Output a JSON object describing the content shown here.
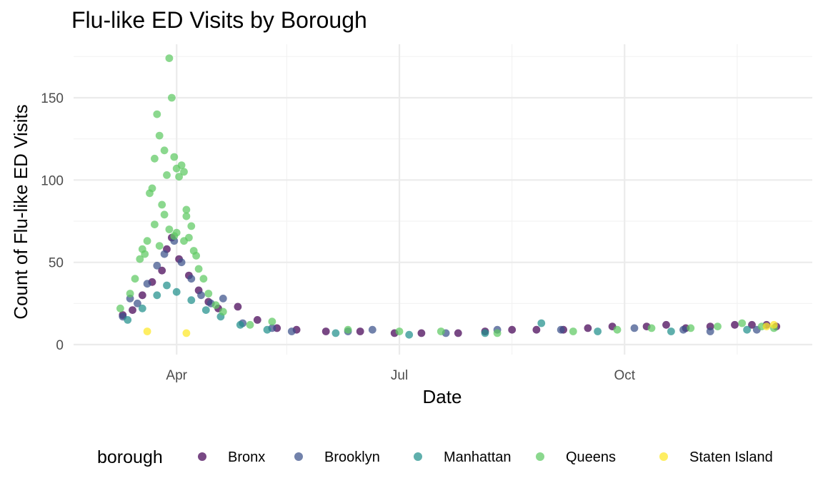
{
  "chart_data": {
    "type": "scatter",
    "title": "Flu-like ED Visits by Borough",
    "xlabel": "Date",
    "ylabel": "Count of Flu-like ED Visits",
    "x_domain": [
      "2020-03-01",
      "2020-12-05"
    ],
    "x_ticks": [
      {
        "date": "2020-04-01",
        "label": "Apr"
      },
      {
        "date": "2020-07-01",
        "label": "Jul"
      },
      {
        "date": "2020-10-01",
        "label": "Oct"
      }
    ],
    "x_minor_ticks": [
      "2020-02-15",
      "2020-05-16",
      "2020-08-16",
      "2020-11-16"
    ],
    "ylim": [
      -8,
      180
    ],
    "y_ticks": [
      0,
      50,
      100,
      150
    ],
    "y_minor_ticks": [
      25,
      75,
      125,
      175
    ],
    "grid": true,
    "legend": {
      "title": "borough",
      "position": "bottom"
    },
    "series": [
      {
        "name": "Bronx",
        "color": "#440154",
        "points": [
          [
            "2020-03-10",
            18
          ],
          [
            "2020-03-14",
            21
          ],
          [
            "2020-03-18",
            30
          ],
          [
            "2020-03-22",
            38
          ],
          [
            "2020-03-26",
            45
          ],
          [
            "2020-03-28",
            58
          ],
          [
            "2020-03-30",
            65
          ],
          [
            "2020-04-02",
            52
          ],
          [
            "2020-04-06",
            42
          ],
          [
            "2020-04-10",
            33
          ],
          [
            "2020-04-14",
            26
          ],
          [
            "2020-04-18",
            22
          ],
          [
            "2020-04-26",
            23
          ],
          [
            "2020-05-04",
            15
          ],
          [
            "2020-05-12",
            10
          ],
          [
            "2020-05-20",
            9
          ],
          [
            "2020-06-01",
            8
          ],
          [
            "2020-06-15",
            8
          ],
          [
            "2020-06-29",
            7
          ],
          [
            "2020-07-10",
            7
          ],
          [
            "2020-07-25",
            7
          ],
          [
            "2020-08-05",
            8
          ],
          [
            "2020-08-16",
            9
          ],
          [
            "2020-08-26",
            9
          ],
          [
            "2020-09-06",
            9
          ],
          [
            "2020-09-16",
            10
          ],
          [
            "2020-09-26",
            11
          ],
          [
            "2020-10-10",
            11
          ],
          [
            "2020-10-18",
            12
          ],
          [
            "2020-10-26",
            10
          ],
          [
            "2020-11-05",
            11
          ],
          [
            "2020-11-15",
            12
          ],
          [
            "2020-11-22",
            12
          ],
          [
            "2020-11-28",
            12
          ],
          [
            "2020-12-02",
            11
          ]
        ]
      },
      {
        "name": "Brooklyn",
        "color": "#3b528b",
        "points": [
          [
            "2020-03-10",
            17
          ],
          [
            "2020-03-13",
            28
          ],
          [
            "2020-03-16",
            25
          ],
          [
            "2020-03-20",
            37
          ],
          [
            "2020-03-24",
            48
          ],
          [
            "2020-03-27",
            55
          ],
          [
            "2020-03-31",
            63
          ],
          [
            "2020-04-03",
            50
          ],
          [
            "2020-04-07",
            40
          ],
          [
            "2020-04-11",
            30
          ],
          [
            "2020-04-15",
            25
          ],
          [
            "2020-04-20",
            28
          ],
          [
            "2020-04-28",
            13
          ],
          [
            "2020-05-10",
            10
          ],
          [
            "2020-05-18",
            8
          ],
          [
            "2020-06-10",
            8
          ],
          [
            "2020-06-20",
            9
          ],
          [
            "2020-07-20",
            7
          ],
          [
            "2020-08-10",
            9
          ],
          [
            "2020-09-05",
            9
          ],
          [
            "2020-10-05",
            10
          ],
          [
            "2020-10-25",
            9
          ],
          [
            "2020-11-05",
            8
          ],
          [
            "2020-11-24",
            9
          ]
        ]
      },
      {
        "name": "Manhattan",
        "color": "#21908c",
        "points": [
          [
            "2020-03-12",
            15
          ],
          [
            "2020-03-18",
            22
          ],
          [
            "2020-03-24",
            30
          ],
          [
            "2020-03-28",
            36
          ],
          [
            "2020-04-01",
            32
          ],
          [
            "2020-04-07",
            27
          ],
          [
            "2020-04-13",
            21
          ],
          [
            "2020-04-19",
            17
          ],
          [
            "2020-04-27",
            12
          ],
          [
            "2020-05-08",
            9
          ],
          [
            "2020-06-05",
            7
          ],
          [
            "2020-07-05",
            6
          ],
          [
            "2020-08-05",
            7
          ],
          [
            "2020-08-28",
            13
          ],
          [
            "2020-09-20",
            8
          ],
          [
            "2020-10-20",
            8
          ],
          [
            "2020-11-20",
            9
          ]
        ]
      },
      {
        "name": "Queens",
        "color": "#5ec962",
        "points": [
          [
            "2020-03-09",
            22
          ],
          [
            "2020-03-13",
            31
          ],
          [
            "2020-03-15",
            40
          ],
          [
            "2020-03-17",
            52
          ],
          [
            "2020-03-18",
            58
          ],
          [
            "2020-03-19",
            55
          ],
          [
            "2020-03-20",
            63
          ],
          [
            "2020-03-21",
            92
          ],
          [
            "2020-03-22",
            95
          ],
          [
            "2020-03-23",
            113
          ],
          [
            "2020-03-24",
            140
          ],
          [
            "2020-03-25",
            127
          ],
          [
            "2020-03-26",
            85
          ],
          [
            "2020-03-27",
            118
          ],
          [
            "2020-03-28",
            103
          ],
          [
            "2020-03-29",
            174
          ],
          [
            "2020-03-30",
            150
          ],
          [
            "2020-03-31",
            114
          ],
          [
            "2020-04-01",
            107
          ],
          [
            "2020-04-02",
            102
          ],
          [
            "2020-04-03",
            109
          ],
          [
            "2020-04-04",
            105
          ],
          [
            "2020-04-05",
            82
          ],
          [
            "2020-04-06",
            65
          ],
          [
            "2020-04-07",
            72
          ],
          [
            "2020-04-08",
            57
          ],
          [
            "2020-04-09",
            54
          ],
          [
            "2020-04-10",
            46
          ],
          [
            "2020-04-12",
            40
          ],
          [
            "2020-04-14",
            31
          ],
          [
            "2020-04-17",
            24
          ],
          [
            "2020-04-20",
            20
          ],
          [
            "2020-03-25",
            60
          ],
          [
            "2020-03-27",
            79
          ],
          [
            "2020-03-29",
            70
          ],
          [
            "2020-04-01",
            68
          ],
          [
            "2020-04-05",
            78
          ],
          [
            "2020-03-23",
            73
          ],
          [
            "2020-03-31",
            66
          ],
          [
            "2020-04-04",
            63
          ],
          [
            "2020-05-01",
            12
          ],
          [
            "2020-05-10",
            14
          ],
          [
            "2020-06-10",
            9
          ],
          [
            "2020-07-01",
            8
          ],
          [
            "2020-07-18",
            8
          ],
          [
            "2020-08-10",
            7
          ],
          [
            "2020-09-10",
            8
          ],
          [
            "2020-09-28",
            9
          ],
          [
            "2020-10-12",
            10
          ],
          [
            "2020-10-28",
            10
          ],
          [
            "2020-11-08",
            11
          ],
          [
            "2020-11-18",
            13
          ],
          [
            "2020-11-26",
            11
          ],
          [
            "2020-12-01",
            10
          ]
        ]
      },
      {
        "name": "Staten Island",
        "color": "#fde725",
        "points": [
          [
            "2020-03-20",
            8
          ],
          [
            "2020-04-05",
            7
          ],
          [
            "2020-11-28",
            11
          ],
          [
            "2020-12-01",
            12
          ]
        ]
      }
    ]
  }
}
